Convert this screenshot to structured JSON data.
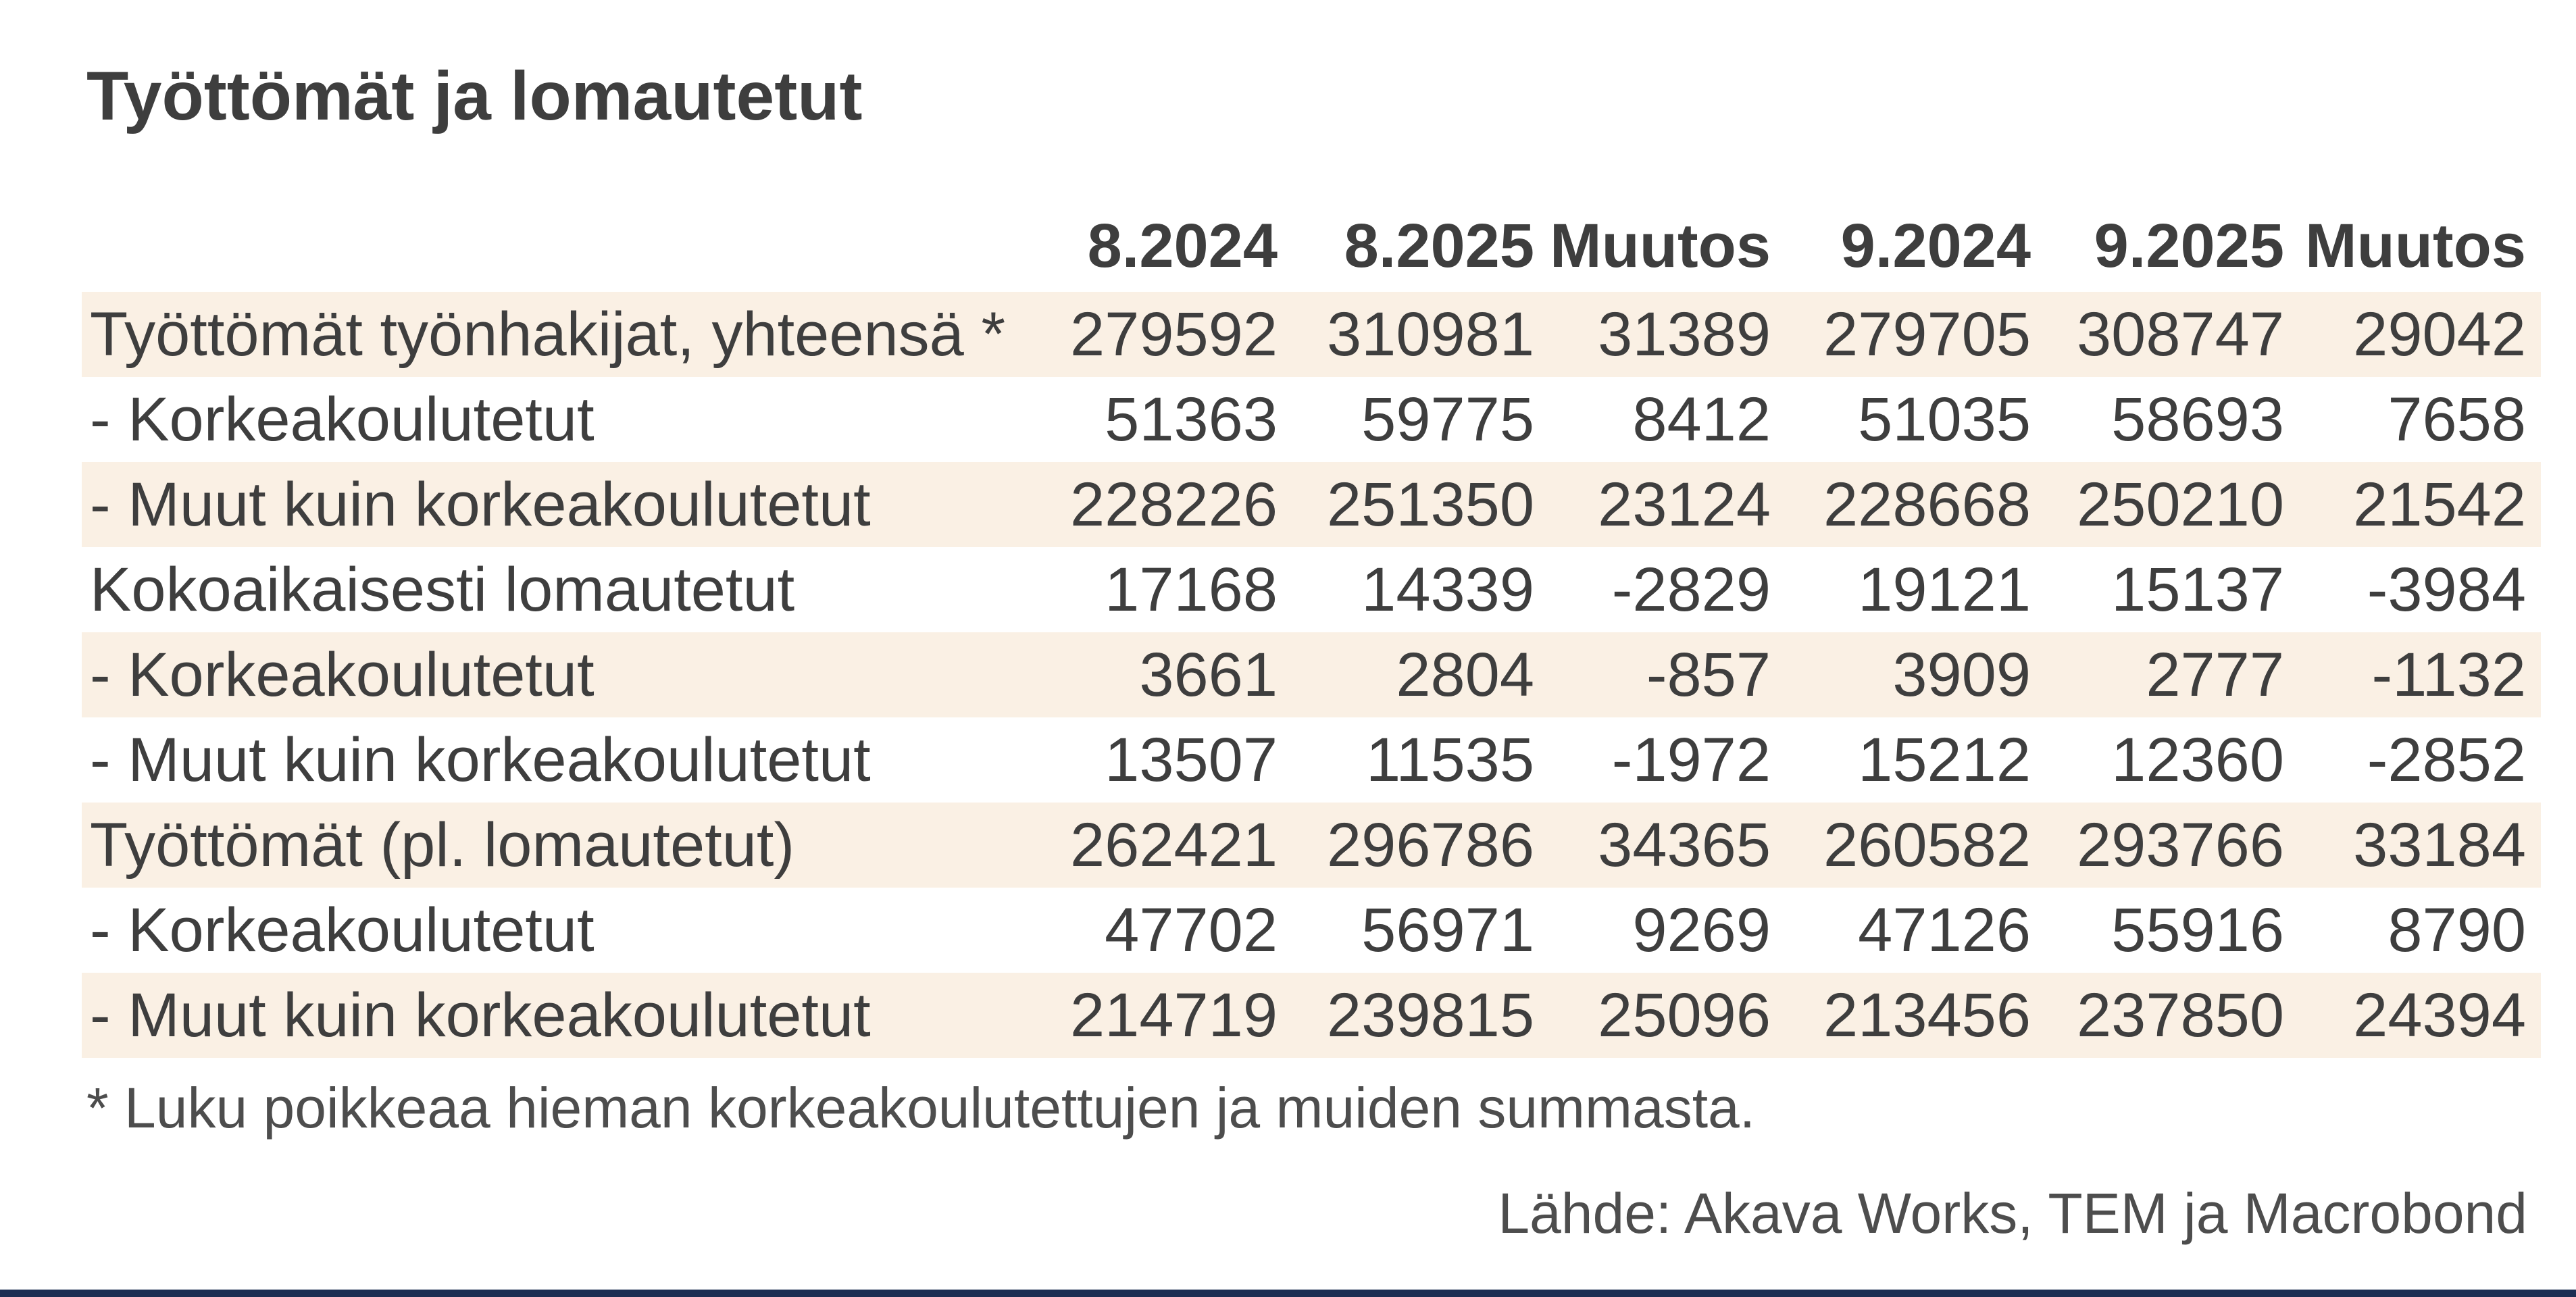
{
  "chart_data": {
    "type": "table",
    "title": "Työttömät ja lomautetut",
    "columns": [
      "8.2024",
      "8.2025",
      "Muutos",
      "9.2024",
      "9.2025",
      "Muutos"
    ],
    "rows": [
      {
        "label": "Työttömät työnhakijat, yhteensä *",
        "values": [
          279592,
          310981,
          31389,
          279705,
          308747,
          29042
        ]
      },
      {
        "label": "- Korkeakoulutetut",
        "values": [
          51363,
          59775,
          8412,
          51035,
          58693,
          7658
        ]
      },
      {
        "label": "- Muut kuin korkeakoulutetut",
        "values": [
          228226,
          251350,
          23124,
          228668,
          250210,
          21542
        ]
      },
      {
        "label": "Kokoaikaisesti lomautetut",
        "values": [
          17168,
          14339,
          -2829,
          19121,
          15137,
          -3984
        ]
      },
      {
        "label": "- Korkeakoulutetut",
        "values": [
          3661,
          2804,
          -857,
          3909,
          2777,
          -1132
        ]
      },
      {
        "label": "- Muut kuin korkeakoulutetut",
        "values": [
          13507,
          11535,
          -1972,
          15212,
          12360,
          -2852
        ]
      },
      {
        "label": "Työttömät (pl. lomautetut)",
        "values": [
          262421,
          296786,
          34365,
          260582,
          293766,
          33184
        ]
      },
      {
        "label": "- Korkeakoulutetut",
        "values": [
          47702,
          56971,
          9269,
          47126,
          55916,
          8790
        ]
      },
      {
        "label": "- Muut kuin korkeakoulutetut",
        "values": [
          214719,
          239815,
          25096,
          213456,
          237850,
          24394
        ]
      }
    ],
    "footnote": "* Luku poikkeaa hieman korkeakoulutettujen ja muiden summasta.",
    "source": "Lähde: Akava Works, TEM ja Macrobond",
    "layout_hints": "striped rows, no gridlines, numbers right-aligned, first header cell empty"
  },
  "colors": {
    "text": "#3e3e3e",
    "muted_text": "#4d4d4d",
    "stripe": "#faf0e4",
    "accent_bar": "#1c2e52",
    "background": "#ffffff"
  }
}
